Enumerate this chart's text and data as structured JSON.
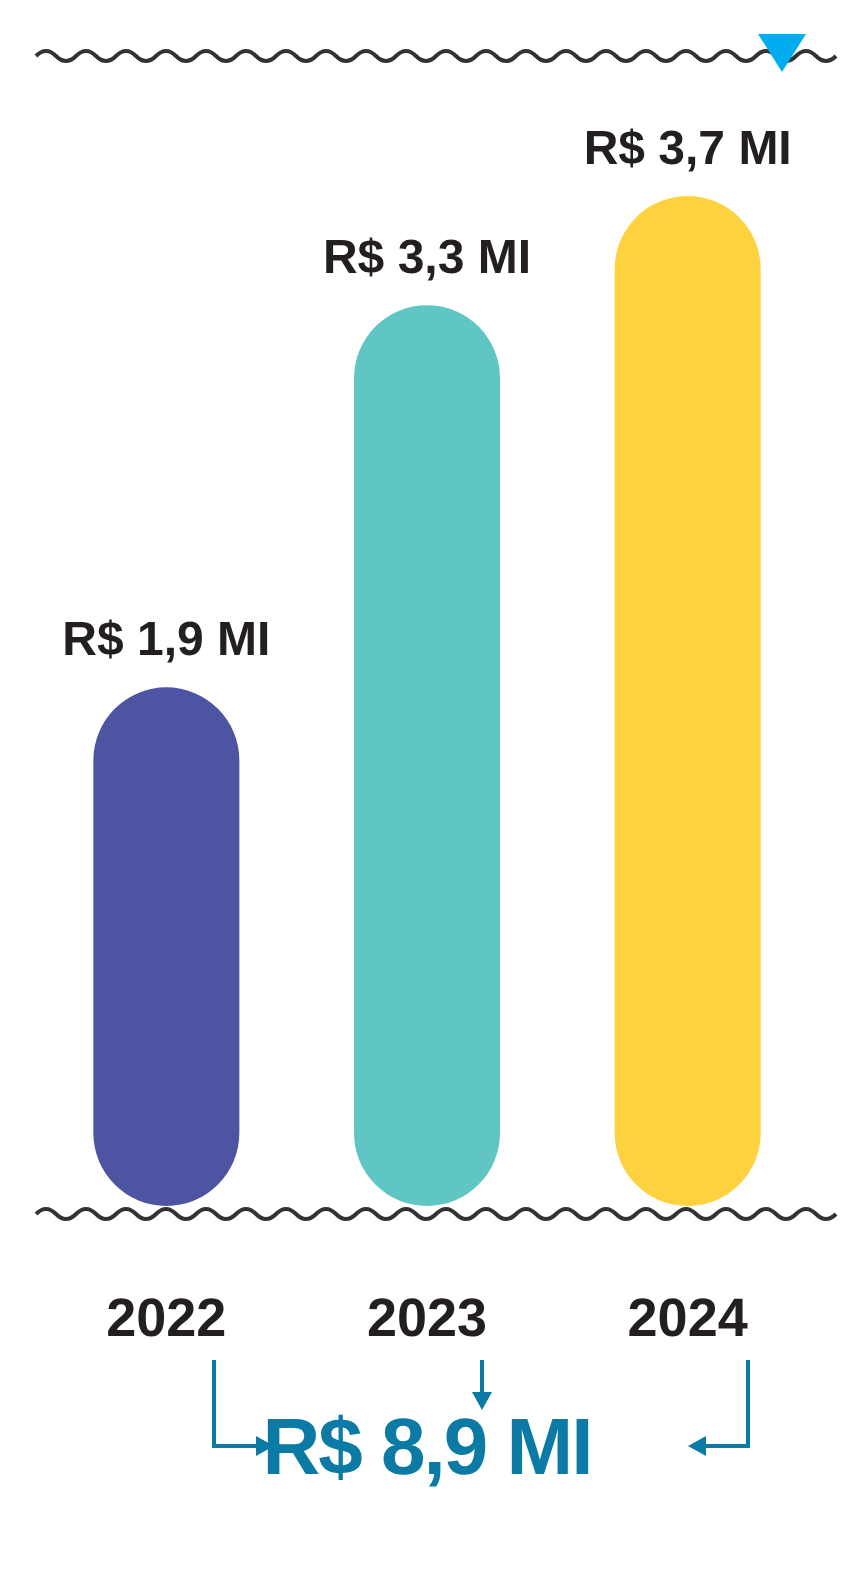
{
  "chart_data": {
    "type": "bar",
    "categories": [
      "2022",
      "2023",
      "2024"
    ],
    "values": [
      1.9,
      3.3,
      3.7
    ],
    "value_labels": [
      "R$ 1,9 MI",
      "R$ 3,3 MI",
      "R$ 3,7 MI"
    ],
    "colors": [
      "#4d55a3",
      "#5fc6c3",
      "#fdd23e"
    ],
    "annotations": [
      "R$ 8,9 MI"
    ],
    "grid": false,
    "legend": false
  }
}
